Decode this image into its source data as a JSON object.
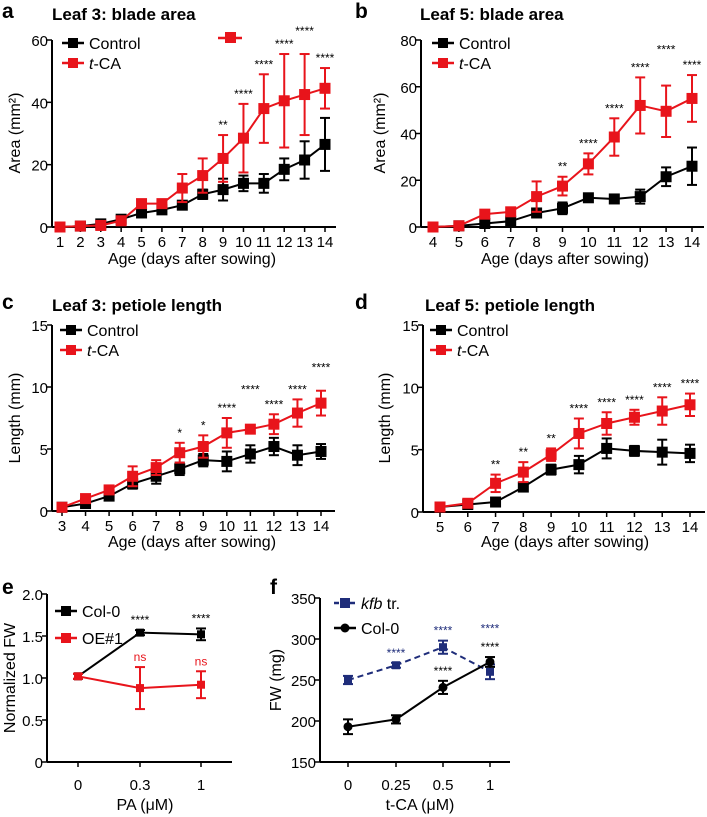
{
  "colors": {
    "control": "#000000",
    "treated": "#e8141b",
    "kfb": "#1f2d7a"
  },
  "chart_data": [
    {
      "id": "a",
      "type": "line",
      "panel_letter": "a",
      "title": "Leaf 3: blade area",
      "xlabel": "Age (days after sowing)",
      "ylabel": "Area (mm²)",
      "x": [
        1,
        2,
        3,
        4,
        5,
        6,
        7,
        8,
        9,
        10,
        11,
        12,
        13,
        14
      ],
      "xticks": [
        "1",
        "2",
        "3",
        "4",
        "5",
        "6",
        "7",
        "8",
        "9",
        "10",
        "11",
        "12",
        "13",
        "14"
      ],
      "ylim": [
        0,
        60
      ],
      "yticks": [
        "0",
        "20",
        "40",
        "60"
      ],
      "legend": "top-left",
      "series": [
        {
          "name": "Control",
          "color": "#000000",
          "marker": "square",
          "values": [
            0,
            0.3,
            1,
            2.5,
            4.5,
            5.5,
            7,
            10.5,
            12,
            14,
            14,
            18.5,
            21.5,
            26.5
          ],
          "errors": [
            0.3,
            0.3,
            0.5,
            0.8,
            1,
            1,
            1,
            1.5,
            3.5,
            2.5,
            3,
            3.5,
            6,
            8.5
          ]
        },
        {
          "name": "t-CA",
          "color": "#e8141b",
          "marker": "square",
          "values": [
            0,
            0.3,
            0.5,
            2,
            7.5,
            7.5,
            12.5,
            16.5,
            22,
            28.5,
            38,
            40.5,
            42.5,
            44.5
          ],
          "errors": [
            0.3,
            0.3,
            0.5,
            0.8,
            1,
            1,
            4.5,
            5.5,
            7.5,
            11,
            11,
            15,
            13,
            6.5
          ]
        }
      ],
      "significance": [
        {
          "x": 9,
          "label": "**"
        },
        {
          "x": 10,
          "label": "****"
        },
        {
          "x": 11,
          "label": "****"
        },
        {
          "x": 12,
          "label": "****"
        },
        {
          "x": 13,
          "label": "****"
        },
        {
          "x": 14,
          "label": "****"
        }
      ]
    },
    {
      "id": "b",
      "type": "line",
      "panel_letter": "b",
      "title": "Leaf 5:  blade area",
      "xlabel": "Age (days after sowing)",
      "ylabel": "Area (mm²)",
      "x": [
        4,
        5,
        6,
        7,
        8,
        9,
        10,
        11,
        12,
        13,
        14
      ],
      "xticks": [
        "4",
        "5",
        "6",
        "7",
        "8",
        "9",
        "10",
        "11",
        "12",
        "13",
        "14"
      ],
      "ylim": [
        0,
        80
      ],
      "yticks": [
        "0",
        "20",
        "40",
        "60",
        "80"
      ],
      "legend": "top-left",
      "series": [
        {
          "name": "Control",
          "color": "#000000",
          "marker": "square",
          "values": [
            0,
            0.5,
            1.5,
            2.5,
            6,
            8,
            12.5,
            12,
            13,
            21.5,
            26
          ],
          "errors": [
            0.3,
            0.5,
            0.5,
            0.8,
            1.5,
            2.5,
            1.5,
            1.5,
            3,
            4,
            8
          ]
        },
        {
          "name": "t-CA",
          "color": "#e8141b",
          "marker": "square",
          "values": [
            0,
            0.5,
            5.5,
            6.5,
            13,
            17.5,
            27,
            38.5,
            52,
            49.5,
            55
          ],
          "errors": [
            0.3,
            0.5,
            1,
            1,
            6.5,
            4,
            4.5,
            8,
            12,
            11,
            10
          ]
        }
      ],
      "significance": [
        {
          "x": 9,
          "label": "**"
        },
        {
          "x": 10,
          "label": "****"
        },
        {
          "x": 11,
          "label": "****"
        },
        {
          "x": 12,
          "label": "****"
        },
        {
          "x": 13,
          "label": "****"
        },
        {
          "x": 14,
          "label": "****"
        }
      ]
    },
    {
      "id": "c",
      "type": "line",
      "panel_letter": "c",
      "title": "Leaf 3: petiole length",
      "xlabel": "Age (days after sowing)",
      "ylabel": "Length (mm)",
      "x": [
        3,
        4,
        5,
        6,
        7,
        8,
        9,
        10,
        11,
        12,
        13,
        14
      ],
      "xticks": [
        "3",
        "4",
        "5",
        "6",
        "7",
        "8",
        "9",
        "10",
        "11",
        "12",
        "13",
        "14"
      ],
      "ylim": [
        0,
        15
      ],
      "yticks": [
        "0",
        "5",
        "10",
        "15"
      ],
      "legend": "top-left",
      "series": [
        {
          "name": "Control",
          "color": "#000000",
          "marker": "square",
          "values": [
            0.3,
            0.6,
            1.2,
            2.2,
            2.8,
            3.4,
            4.1,
            4.0,
            4.6,
            5.2,
            4.5,
            4.8
          ],
          "errors": [
            0.1,
            0.2,
            0.3,
            0.4,
            0.6,
            0.5,
            0.5,
            0.8,
            0.7,
            0.7,
            0.8,
            0.6
          ]
        },
        {
          "name": "t-CA",
          "color": "#e8141b",
          "marker": "square",
          "values": [
            0.3,
            1.0,
            1.7,
            2.8,
            3.5,
            4.7,
            5.2,
            6.3,
            6.6,
            7.0,
            7.9,
            8.7
          ],
          "errors": [
            0.1,
            0.2,
            0.3,
            0.8,
            0.6,
            0.8,
            0.9,
            1.2,
            0.3,
            0.8,
            1.1,
            1.0
          ]
        }
      ],
      "significance": [
        {
          "x": 8,
          "label": "*"
        },
        {
          "x": 9,
          "label": "*"
        },
        {
          "x": 10,
          "label": "****"
        },
        {
          "x": 11,
          "label": "****"
        },
        {
          "x": 12,
          "label": "****"
        },
        {
          "x": 13,
          "label": "****"
        },
        {
          "x": 14,
          "label": "****"
        }
      ]
    },
    {
      "id": "d",
      "type": "line",
      "panel_letter": "d",
      "title": "Leaf 5: petiole length",
      "xlabel": "Age (days after sowing)",
      "ylabel": "Length (mm)",
      "x": [
        5,
        6,
        7,
        8,
        9,
        10,
        11,
        12,
        13,
        14
      ],
      "xticks": [
        "5",
        "6",
        "7",
        "8",
        "9",
        "10",
        "11",
        "12",
        "13",
        "14"
      ],
      "ylim": [
        0,
        15
      ],
      "yticks": [
        "0",
        "5",
        "10",
        "15"
      ],
      "legend": "top-left",
      "series": [
        {
          "name": "Control",
          "color": "#000000",
          "marker": "square",
          "values": [
            0.4,
            0.6,
            0.8,
            2.0,
            3.4,
            3.8,
            5.1,
            4.9,
            4.8,
            4.7
          ],
          "errors": [
            0.1,
            0.1,
            0.2,
            0.3,
            0.4,
            0.7,
            0.8,
            0.4,
            1.0,
            0.7
          ]
        },
        {
          "name": "t-CA",
          "color": "#e8141b",
          "marker": "square",
          "values": [
            0.4,
            0.7,
            2.3,
            3.2,
            4.6,
            6.3,
            7.1,
            7.6,
            8.1,
            8.6
          ],
          "errors": [
            0.1,
            0.1,
            0.7,
            0.8,
            0.5,
            1.2,
            0.9,
            0.6,
            1.1,
            0.9
          ]
        }
      ],
      "significance": [
        {
          "x": 7,
          "label": "**"
        },
        {
          "x": 8,
          "label": "**"
        },
        {
          "x": 9,
          "label": "**"
        },
        {
          "x": 10,
          "label": "****"
        },
        {
          "x": 11,
          "label": "****"
        },
        {
          "x": 12,
          "label": "****"
        },
        {
          "x": 13,
          "label": "****"
        },
        {
          "x": 14,
          "label": "****"
        }
      ]
    },
    {
      "id": "e",
      "type": "line",
      "panel_letter": "e",
      "title": "",
      "xlabel": "PA (μM)",
      "ylabel": "Normalized FW",
      "x": [
        0,
        1,
        2
      ],
      "xticks": [
        "0",
        "0.3",
        "1"
      ],
      "ylim": [
        0,
        2
      ],
      "yticks": [
        "0",
        "0.5",
        "1.0",
        "1.5",
        "2.0"
      ],
      "legend": "top-left",
      "series": [
        {
          "name": "Col-0",
          "color": "#000000",
          "marker": "square",
          "values": [
            1.02,
            1.54,
            1.52
          ],
          "errors": [
            0.03,
            0.03,
            0.07
          ],
          "significance": [
            null,
            "****",
            "****"
          ]
        },
        {
          "name": "OE#1",
          "color": "#e8141b",
          "marker": "square",
          "values": [
            1.02,
            0.88,
            0.92
          ],
          "errors": [
            0.03,
            0.25,
            0.16
          ],
          "significance": [
            null,
            "ns",
            "ns"
          ]
        }
      ]
    },
    {
      "id": "f",
      "type": "line",
      "panel_letter": "f",
      "title": "",
      "xlabel": "t-CA (μM)",
      "ylabel": "FW (mg)",
      "x": [
        0,
        1,
        2,
        3
      ],
      "xticks": [
        "0",
        "0.25",
        "0.5",
        "1"
      ],
      "ylim": [
        150,
        350
      ],
      "yticks": [
        "150",
        "200",
        "250",
        "300",
        "350"
      ],
      "legend": "top-left",
      "series": [
        {
          "name": "kfb tr.",
          "color": "#1f2d7a",
          "marker": "square",
          "dashed": true,
          "values": [
            250,
            268,
            290,
            260
          ],
          "errors": [
            5,
            3,
            8,
            9
          ],
          "significance": [
            null,
            "****",
            "****",
            "****"
          ]
        },
        {
          "name": "Col-0",
          "color": "#000000",
          "marker": "circle",
          "values": [
            193,
            202,
            241,
            272
          ],
          "errors": [
            9,
            5,
            8,
            6
          ],
          "significance": [
            null,
            null,
            "****",
            "****"
          ]
        }
      ]
    }
  ]
}
